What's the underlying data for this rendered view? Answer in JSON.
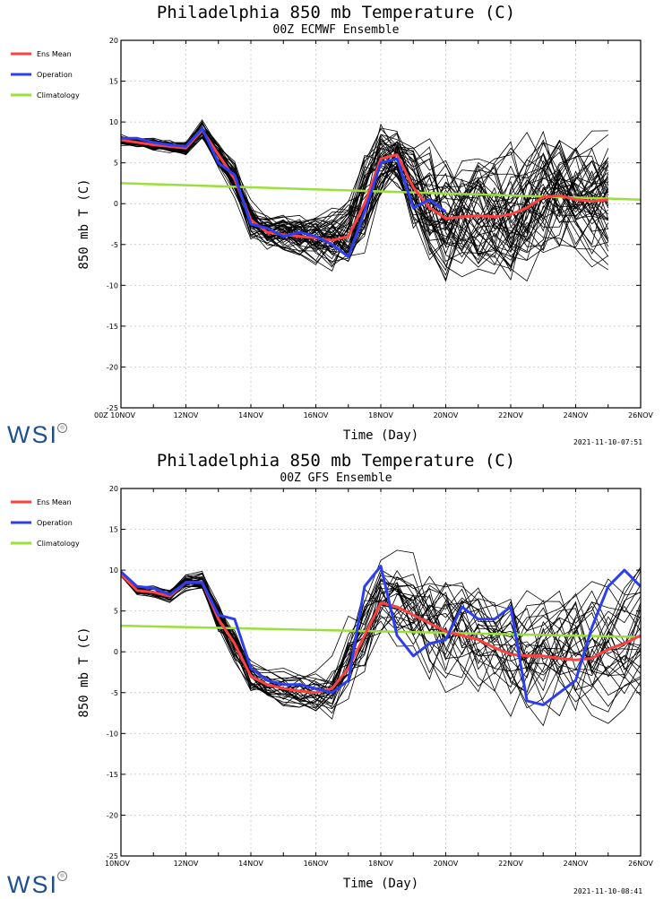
{
  "chart_data": [
    {
      "type": "line",
      "title": "Philadelphia 850 mb Temperature (C)",
      "subtitle": "00Z ECMWF Ensemble",
      "xlabel": "Time (Day)",
      "ylabel": "850 mb T (C)",
      "xlim": [
        10,
        26
      ],
      "ylim": [
        -25,
        20
      ],
      "yticks": [
        20,
        15,
        10,
        5,
        0,
        -5,
        -10,
        -15,
        -20,
        -25
      ],
      "xticks": [
        10,
        12,
        14,
        16,
        18,
        20,
        22,
        24,
        26
      ],
      "xtick_labels": [
        "00Z 10NOV",
        "12NOV",
        "14NOV",
        "16NOV",
        "18NOV",
        "20NOV",
        "22NOV",
        "24NOV",
        "26NOV"
      ],
      "grid": true,
      "legend_position": "left",
      "timestamp": "2021-11-10-07:51",
      "colors": {
        "ens_mean": "#ff4040",
        "operation": "#2b3ff0",
        "climatology": "#9adf3a",
        "members": "#000000",
        "grid": "#bdbdbd"
      },
      "series": [
        {
          "name": "Ens Mean",
          "x": [
            10,
            10.5,
            11,
            11.5,
            12,
            12.5,
            13,
            13.5,
            14,
            14.5,
            15,
            15.5,
            16,
            16.5,
            17,
            17.5,
            18,
            18.5,
            19,
            19.5,
            20,
            20.5,
            21,
            21.5,
            22,
            22.5,
            23,
            23.5,
            24,
            24.5,
            25
          ],
          "values": [
            7.8,
            7.5,
            7.2,
            7,
            6.8,
            9,
            6,
            3,
            -2,
            -3.5,
            -3.8,
            -4,
            -4.2,
            -4.5,
            -4,
            0,
            5.5,
            6,
            2,
            -0.5,
            -1.8,
            -1.6,
            -1.5,
            -1.6,
            -1.3,
            -0.5,
            0.8,
            1,
            0.5,
            0.3,
            0.5
          ]
        },
        {
          "name": "Operation",
          "x": [
            10,
            10.5,
            11,
            11.5,
            12,
            12.5,
            13,
            13.5,
            14,
            14.5,
            15,
            15.5,
            16,
            16.5,
            17,
            17.5,
            18,
            18.5,
            19,
            19.5,
            20
          ],
          "values": [
            8,
            8,
            7.5,
            7.2,
            7,
            9.2,
            5,
            3.5,
            -2.5,
            -3,
            -4,
            -3.5,
            -4,
            -5,
            -6.5,
            -1,
            5,
            5.5,
            -0.5,
            0.5,
            -1
          ]
        },
        {
          "name": "Climatology",
          "x": [
            10,
            26
          ],
          "values": [
            2.5,
            0.5
          ]
        }
      ],
      "members": [
        {
          "n": 50,
          "x": [
            10,
            10.5,
            11,
            11.5,
            12,
            12.5,
            13,
            13.5,
            14,
            14.5,
            15,
            15.5,
            16,
            16.5,
            17,
            17.5,
            18,
            18.5,
            19,
            19.5,
            20,
            20.5,
            21,
            21.5,
            22,
            22.5,
            23,
            23.5,
            24,
            24.5,
            25
          ],
          "mean": [
            7.8,
            7.5,
            7.2,
            7,
            6.8,
            9,
            6,
            3,
            -2,
            -3.5,
            -3.8,
            -4,
            -4.2,
            -4.5,
            -4,
            0,
            5.5,
            6,
            2,
            -0.5,
            -1.8,
            -1.6,
            -1.5,
            -1.6,
            -1.3,
            -0.5,
            0.8,
            1,
            0.5,
            0.3,
            0.5
          ],
          "spread": [
            0.5,
            0.5,
            0.6,
            0.6,
            0.8,
            1,
            1.5,
            2,
            2,
            1.8,
            1.8,
            2,
            2.5,
            3,
            4,
            5,
            4,
            4,
            5,
            6,
            6,
            6,
            6,
            6,
            6,
            6,
            6,
            6,
            6,
            6,
            6
          ]
        }
      ]
    },
    {
      "type": "line",
      "title": "Philadelphia 850 mb Temperature (C)",
      "subtitle": "00Z GFS Ensemble",
      "xlabel": "Time (Day)",
      "ylabel": "850 mb T (C)",
      "xlim": [
        10,
        26
      ],
      "ylim": [
        -25,
        20
      ],
      "yticks": [
        20,
        15,
        10,
        5,
        0,
        -5,
        -10,
        -15,
        -20,
        -25
      ],
      "xticks": [
        10,
        12,
        14,
        16,
        18,
        20,
        22,
        24,
        26
      ],
      "xtick_labels": [
        "10NOV",
        "12NOV",
        "14NOV",
        "16NOV",
        "18NOV",
        "20NOV",
        "22NOV",
        "24NOV",
        "26NOV"
      ],
      "grid": true,
      "legend_position": "left",
      "timestamp": "2021-11-10-08:41",
      "colors": {
        "ens_mean": "#ff4040",
        "operation": "#2b3ff0",
        "climatology": "#9adf3a",
        "members": "#000000",
        "grid": "#bdbdbd"
      },
      "series": [
        {
          "name": "Ens Mean",
          "x": [
            10,
            10.5,
            11,
            11.5,
            12,
            12.5,
            13,
            13.5,
            14,
            14.5,
            15,
            15.5,
            16,
            16.5,
            17,
            17.5,
            18,
            18.5,
            19,
            19.5,
            20,
            20.5,
            21,
            21.5,
            22,
            22.5,
            23,
            23.5,
            24,
            24.5,
            25,
            25.5,
            26
          ],
          "values": [
            9.5,
            7.5,
            7.3,
            6.8,
            8.5,
            8.5,
            4,
            1,
            -3,
            -4,
            -4.5,
            -4.8,
            -5,
            -4.5,
            -2,
            2,
            6,
            5.5,
            4.5,
            3.5,
            2.5,
            2,
            1.5,
            0.5,
            -0.3,
            -0.5,
            -0.5,
            -0.8,
            -1,
            -0.8,
            0.3,
            1,
            2
          ]
        },
        {
          "name": "Operation",
          "x": [
            10,
            10.5,
            11,
            11.5,
            12,
            12.5,
            13,
            13.5,
            14,
            14.5,
            15,
            15.5,
            16,
            16.5,
            17,
            17.5,
            18,
            18.5,
            19,
            19.5,
            20,
            20.5,
            21,
            21.5,
            22,
            22.5,
            23,
            23.5,
            24,
            24.5,
            25,
            25.5,
            26
          ],
          "values": [
            9.8,
            8,
            7.8,
            7,
            8.5,
            8.5,
            4.5,
            4,
            -2,
            -3.5,
            -4,
            -4,
            -4.5,
            -5,
            -3.5,
            8,
            10.5,
            2,
            -0.5,
            1,
            1.5,
            5.5,
            4,
            4,
            5.5,
            -6,
            -6.5,
            -5,
            -3.5,
            3,
            8,
            10,
            8
          ]
        },
        {
          "name": "Climatology",
          "x": [
            10,
            26
          ],
          "values": [
            3.2,
            1.8
          ]
        }
      ],
      "members": [
        {
          "n": 30,
          "x": [
            10,
            10.5,
            11,
            11.5,
            12,
            12.5,
            13,
            13.5,
            14,
            14.5,
            15,
            15.5,
            16,
            16.5,
            17,
            17.5,
            18,
            18.5,
            19,
            19.5,
            20,
            20.5,
            21,
            21.5,
            22,
            22.5,
            23,
            23.5,
            24,
            24.5,
            25,
            25.5,
            26
          ],
          "mean": [
            9.5,
            7.5,
            7.3,
            6.8,
            8.5,
            8.5,
            4,
            1,
            -3,
            -4,
            -4.5,
            -4.8,
            -5,
            -4.5,
            -2,
            2,
            6,
            5.5,
            4.5,
            3.5,
            2.5,
            2,
            1.5,
            0.5,
            -0.3,
            -0.5,
            -0.5,
            -0.8,
            -1,
            -0.8,
            0.3,
            1,
            2
          ],
          "spread": [
            0.3,
            0.5,
            0.6,
            0.6,
            0.8,
            1,
            1.5,
            2,
            2,
            1.8,
            1.8,
            1.8,
            2,
            3,
            4.5,
            5,
            4,
            5,
            5,
            6,
            6,
            6,
            6,
            6,
            6,
            6,
            6,
            6,
            6,
            6,
            6,
            6,
            6
          ]
        }
      ]
    }
  ],
  "brand": "WSI",
  "brand_mark": "®"
}
